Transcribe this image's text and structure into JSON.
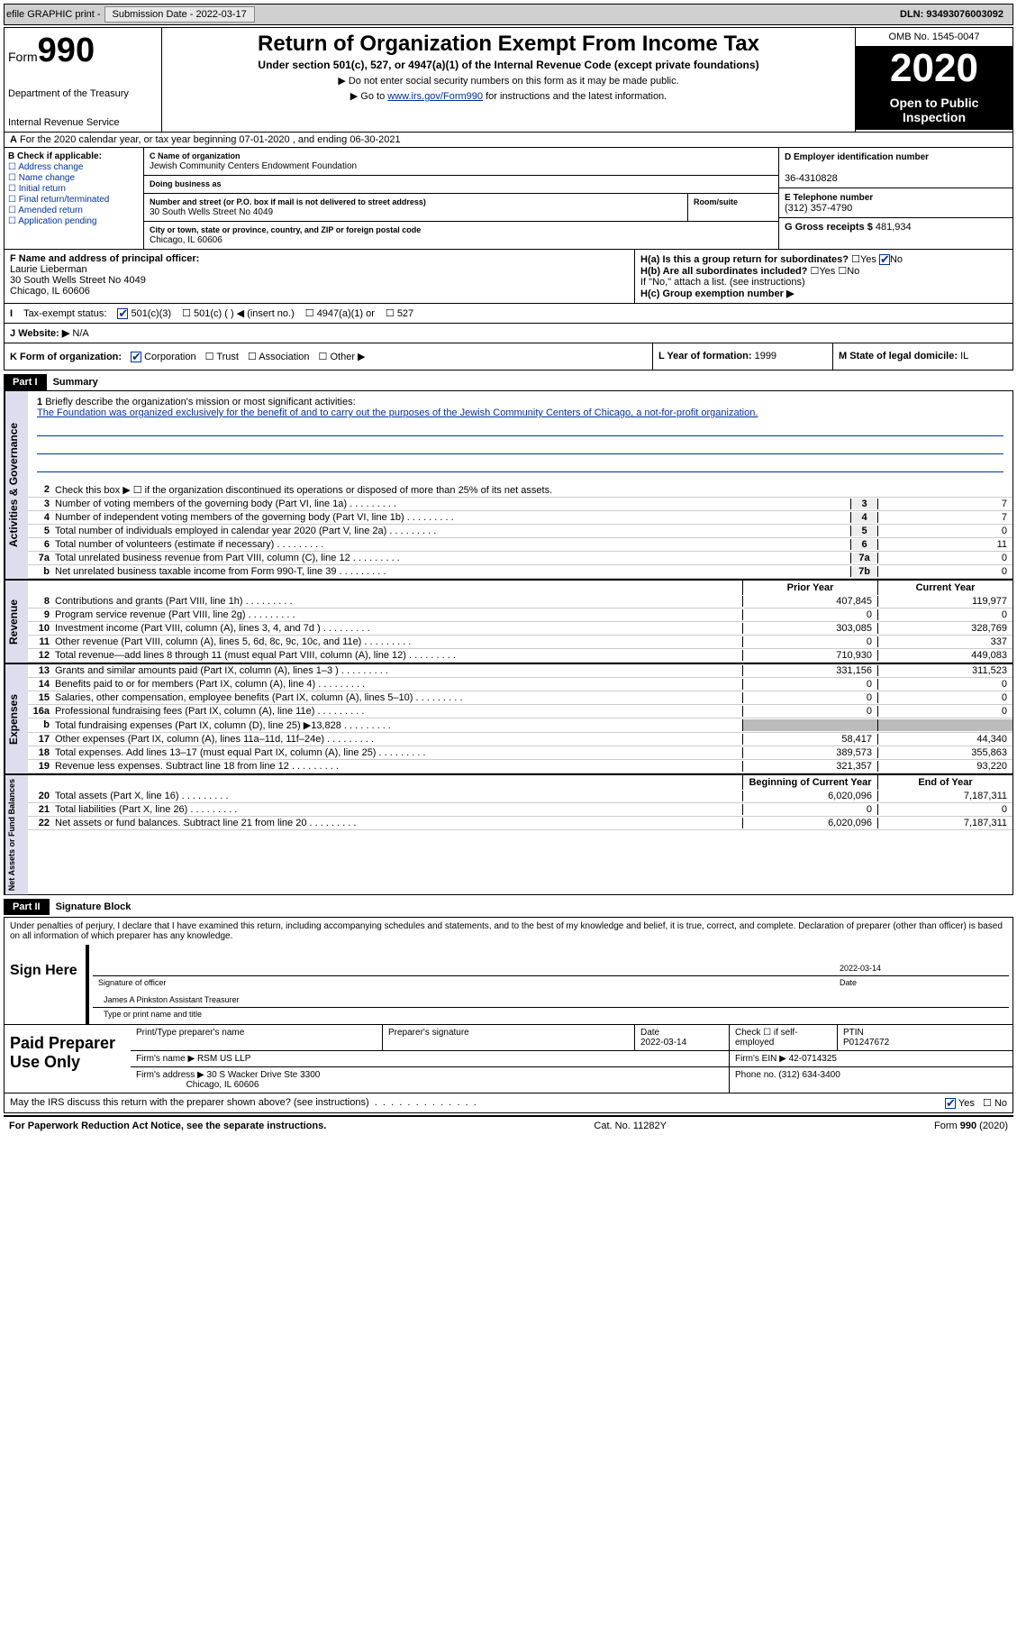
{
  "top_bar": {
    "efile": "efile GRAPHIC print -",
    "submission_label": "Submission Date - 2022-03-17",
    "dln": "DLN: 93493076003092"
  },
  "header": {
    "form_word": "Form",
    "form_no": "990",
    "dept1": "Department of the Treasury",
    "dept2": "Internal Revenue Service",
    "title": "Return of Organization Exempt From Income Tax",
    "subtitle": "Under section 501(c), 527, or 4947(a)(1) of the Internal Revenue Code (except private foundations)",
    "note1": "▶ Do not enter social security numbers on this form as it may be made public.",
    "note2_pre": "▶ Go to ",
    "note2_link": "www.irs.gov/Form990",
    "note2_post": " for instructions and the latest information.",
    "omb": "OMB No. 1545-0047",
    "year": "2020",
    "inspect": "Open to Public Inspection"
  },
  "period": {
    "line": "For the 2020 calendar year, or tax year beginning 07-01-2020    , and ending 06-30-2021",
    "A": "A"
  },
  "box_b": {
    "label": "B Check if applicable:",
    "opts": [
      "Address change",
      "Name change",
      "Initial return",
      "Final return/terminated",
      "Amended return",
      "Application pending"
    ]
  },
  "box_c": {
    "name_lbl": "C Name of organization",
    "name": "Jewish Community Centers Endowment Foundation",
    "dba_lbl": "Doing business as",
    "addr_lbl": "Number and street (or P.O. box if mail is not delivered to street address)",
    "addr": "30 South Wells Street No 4049",
    "room_lbl": "Room/suite",
    "city_lbl": "City or town, state or province, country, and ZIP or foreign postal code",
    "city": "Chicago, IL  60606"
  },
  "box_d": {
    "ein_lbl": "D Employer identification number",
    "ein": "36-4310828",
    "tel_lbl": "E Telephone number",
    "tel": "(312) 357-4790",
    "gross_lbl": "G Gross receipts $",
    "gross": "481,934"
  },
  "box_f": {
    "lbl": "F Name and address of principal officer:",
    "name": "Laurie Lieberman",
    "addr1": "30 South Wells Street No 4049",
    "addr2": "Chicago, IL  60606"
  },
  "box_h": {
    "ha": "H(a)  Is this a group return for subordinates?",
    "hb": "H(b)  Are all subordinates included?",
    "hb_note": "If \"No,\" attach a list. (see instructions)",
    "hc": "H(c)  Group exemption number ▶",
    "yes": "Yes",
    "no": "No"
  },
  "row_i": {
    "lbl": "Tax-exempt status:",
    "opts": [
      "501(c)(3)",
      "501(c) (  ) ◀ (insert no.)",
      "4947(a)(1) or",
      "527"
    ]
  },
  "row_j": {
    "lbl": "Website: ▶",
    "val": "N/A"
  },
  "row_k": {
    "lbl": "K Form of organization:",
    "opts": [
      "Corporation",
      "Trust",
      "Association",
      "Other ▶"
    ],
    "l_lbl": "L Year of formation:",
    "l_val": "1999",
    "m_lbl": "M State of legal domicile:",
    "m_val": "IL"
  },
  "part1": {
    "header": "Part I",
    "title": "Summary",
    "q1_lbl": "1",
    "q1_txt": "Briefly describe the organization's mission or most significant activities:",
    "mission": "The Foundation was organized exclusively for the benefit of and to carry out the purposes of the Jewish Community Centers of Chicago, a not-for-profit organization.",
    "q2_lbl": "2",
    "q2_txt": "Check this box ▶ ☐ if the organization discontinued its operations or disposed of more than 25% of its net assets.",
    "gov_label": "Activities & Governance",
    "rev_label": "Revenue",
    "exp_label": "Expenses",
    "net_label": "Net Assets or Fund Balances",
    "prior_hdr": "Prior Year",
    "current_hdr": "Current Year",
    "boy_hdr": "Beginning of Current Year",
    "eoy_hdr": "End of Year",
    "lines_gov": [
      {
        "n": "3",
        "t": "Number of voting members of the governing body (Part VI, line 1a)",
        "box": "3",
        "v": "7"
      },
      {
        "n": "4",
        "t": "Number of independent voting members of the governing body (Part VI, line 1b)",
        "box": "4",
        "v": "7"
      },
      {
        "n": "5",
        "t": "Total number of individuals employed in calendar year 2020 (Part V, line 2a)",
        "box": "5",
        "v": "0"
      },
      {
        "n": "6",
        "t": "Total number of volunteers (estimate if necessary)",
        "box": "6",
        "v": "11"
      },
      {
        "n": "7a",
        "t": "Total unrelated business revenue from Part VIII, column (C), line 12",
        "box": "7a",
        "v": "0"
      },
      {
        "n": "b",
        "t": "Net unrelated business taxable income from Form 990-T, line 39",
        "box": "7b",
        "v": "0"
      }
    ],
    "lines_rev": [
      {
        "n": "8",
        "t": "Contributions and grants (Part VIII, line 1h)",
        "py": "407,845",
        "cy": "119,977"
      },
      {
        "n": "9",
        "t": "Program service revenue (Part VIII, line 2g)",
        "py": "0",
        "cy": "0"
      },
      {
        "n": "10",
        "t": "Investment income (Part VIII, column (A), lines 3, 4, and 7d )",
        "py": "303,085",
        "cy": "328,769"
      },
      {
        "n": "11",
        "t": "Other revenue (Part VIII, column (A), lines 5, 6d, 8c, 9c, 10c, and 11e)",
        "py": "0",
        "cy": "337"
      },
      {
        "n": "12",
        "t": "Total revenue—add lines 8 through 11 (must equal Part VIII, column (A), line 12)",
        "py": "710,930",
        "cy": "449,083"
      }
    ],
    "lines_exp": [
      {
        "n": "13",
        "t": "Grants and similar amounts paid (Part IX, column (A), lines 1–3 )",
        "py": "331,156",
        "cy": "311,523"
      },
      {
        "n": "14",
        "t": "Benefits paid to or for members (Part IX, column (A), line 4)",
        "py": "0",
        "cy": "0"
      },
      {
        "n": "15",
        "t": "Salaries, other compensation, employee benefits (Part IX, column (A), lines 5–10)",
        "py": "0",
        "cy": "0"
      },
      {
        "n": "16a",
        "t": "Professional fundraising fees (Part IX, column (A), line 11e)",
        "py": "0",
        "cy": "0"
      },
      {
        "n": "b",
        "t": "Total fundraising expenses (Part IX, column (D), line 25) ▶13,828",
        "py": "",
        "cy": "",
        "shaded": true
      },
      {
        "n": "17",
        "t": "Other expenses (Part IX, column (A), lines 11a–11d, 11f–24e)",
        "py": "58,417",
        "cy": "44,340"
      },
      {
        "n": "18",
        "t": "Total expenses. Add lines 13–17 (must equal Part IX, column (A), line 25)",
        "py": "389,573",
        "cy": "355,863"
      },
      {
        "n": "19",
        "t": "Revenue less expenses. Subtract line 18 from line 12",
        "py": "321,357",
        "cy": "93,220"
      }
    ],
    "lines_net": [
      {
        "n": "20",
        "t": "Total assets (Part X, line 16)",
        "py": "6,020,096",
        "cy": "7,187,311"
      },
      {
        "n": "21",
        "t": "Total liabilities (Part X, line 26)",
        "py": "0",
        "cy": "0"
      },
      {
        "n": "22",
        "t": "Net assets or fund balances. Subtract line 21 from line 20",
        "py": "6,020,096",
        "cy": "7,187,311"
      }
    ]
  },
  "part2": {
    "header": "Part II",
    "title": "Signature Block",
    "decl": "Under penalties of perjury, I declare that I have examined this return, including accompanying schedules and statements, and to the best of my knowledge and belief, it is true, correct, and complete. Declaration of preparer (other than officer) is based on all information of which preparer has any knowledge.",
    "sign_here": "Sign Here",
    "sig_date": "2022-03-14",
    "sig_officer_lbl": "Signature of officer",
    "sig_date_lbl": "Date",
    "officer_name": "James A Pinkston  Assistant Treasurer",
    "officer_type_lbl": "Type or print name and title",
    "paid_lbl": "Paid Preparer Use Only",
    "prep_name_lbl": "Print/Type preparer's name",
    "prep_sig_lbl": "Preparer's signature",
    "prep_date_lbl": "Date",
    "prep_date": "2022-03-14",
    "prep_check_lbl": "Check ☐ if self-employed",
    "ptin_lbl": "PTIN",
    "ptin": "P01247672",
    "firm_name_lbl": "Firm's name    ▶",
    "firm_name": "RSM US LLP",
    "firm_ein_lbl": "Firm's EIN ▶",
    "firm_ein": "42-0714325",
    "firm_addr_lbl": "Firm's address ▶",
    "firm_addr": "30 S Wacker Drive Ste 3300",
    "firm_city": "Chicago, IL  60606",
    "firm_phone_lbl": "Phone no.",
    "firm_phone": "(312) 634-3400",
    "discuss": "May the IRS discuss this return with the preparer shown above? (see instructions)",
    "yes": "Yes",
    "no": "No"
  },
  "footer": {
    "left": "For Paperwork Reduction Act Notice, see the separate instructions.",
    "mid": "Cat. No. 11282Y",
    "right": "Form 990 (2020)"
  }
}
